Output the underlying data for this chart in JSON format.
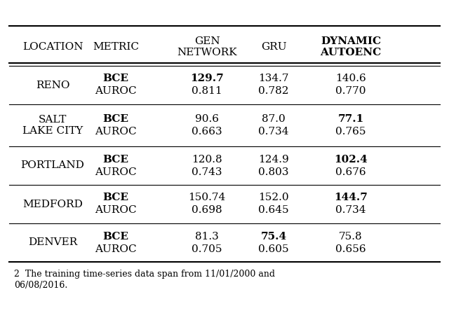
{
  "header_row1": [
    "LOCATION",
    "METRIC",
    "GEN\nNETWORK",
    "GRU",
    "DYNAMIC\nAUTOENC"
  ],
  "rows": [
    {
      "location": "RENO",
      "location_style": "small_caps",
      "metrics": [
        {
          "name": "BCE",
          "name_bold": true,
          "gen": "129.7",
          "gru": "134.7",
          "dyn": "140.6",
          "gen_bold": true,
          "gru_bold": false,
          "dyn_bold": false
        },
        {
          "name": "AUROC",
          "name_bold": false,
          "gen": "0.811",
          "gru": "0.782",
          "dyn": "0.770",
          "gen_bold": false,
          "gru_bold": false,
          "dyn_bold": false
        }
      ]
    },
    {
      "location": "SALT\nLAKE CITY",
      "location_style": "small_caps",
      "metrics": [
        {
          "name": "BCE",
          "name_bold": true,
          "gen": "90.6",
          "gru": "87.0",
          "dyn": "77.1",
          "gen_bold": false,
          "gru_bold": false,
          "dyn_bold": true
        },
        {
          "name": "AUROC",
          "name_bold": false,
          "gen": "0.663",
          "gru": "0.734",
          "dyn": "0.765",
          "gen_bold": false,
          "gru_bold": false,
          "dyn_bold": false
        }
      ]
    },
    {
      "location": "PORTLAND",
      "location_style": "small_caps",
      "metrics": [
        {
          "name": "BCE",
          "name_bold": true,
          "gen": "120.8",
          "gru": "124.9",
          "dyn": "102.4",
          "gen_bold": false,
          "gru_bold": false,
          "dyn_bold": true
        },
        {
          "name": "AUROC",
          "name_bold": false,
          "gen": "0.743",
          "gru": "0.803",
          "dyn": "0.676",
          "gen_bold": false,
          "gru_bold": false,
          "dyn_bold": false
        }
      ]
    },
    {
      "location": "MEDFORD",
      "location_style": "small_caps",
      "metrics": [
        {
          "name": "BCE",
          "name_bold": true,
          "gen": "150.74",
          "gru": "152.0",
          "dyn": "144.7",
          "gen_bold": false,
          "gru_bold": false,
          "dyn_bold": true
        },
        {
          "name": "AUROC",
          "name_bold": false,
          "gen": "0.698",
          "gru": "0.645",
          "dyn": "0.734",
          "gen_bold": false,
          "gru_bold": false,
          "dyn_bold": false
        }
      ]
    },
    {
      "location": "DENVER",
      "location_style": "small_caps",
      "metrics": [
        {
          "name": "BCE",
          "name_bold": true,
          "gen": "81.3",
          "gru": "75.4",
          "dyn": "75.8",
          "gen_bold": false,
          "gru_bold": true,
          "dyn_bold": false
        },
        {
          "name": "AUROC",
          "name_bold": false,
          "gen": "0.705",
          "gru": "0.605",
          "dyn": "0.656",
          "gen_bold": false,
          "gru_bold": false,
          "dyn_bold": false
        }
      ]
    }
  ],
  "footnote": "2  The training time-series data span from 11/01/2000 and\n06/08/2016.",
  "bg_color": "#ffffff",
  "text_color": "#000000",
  "font_size": 11,
  "header_font_size": 11
}
